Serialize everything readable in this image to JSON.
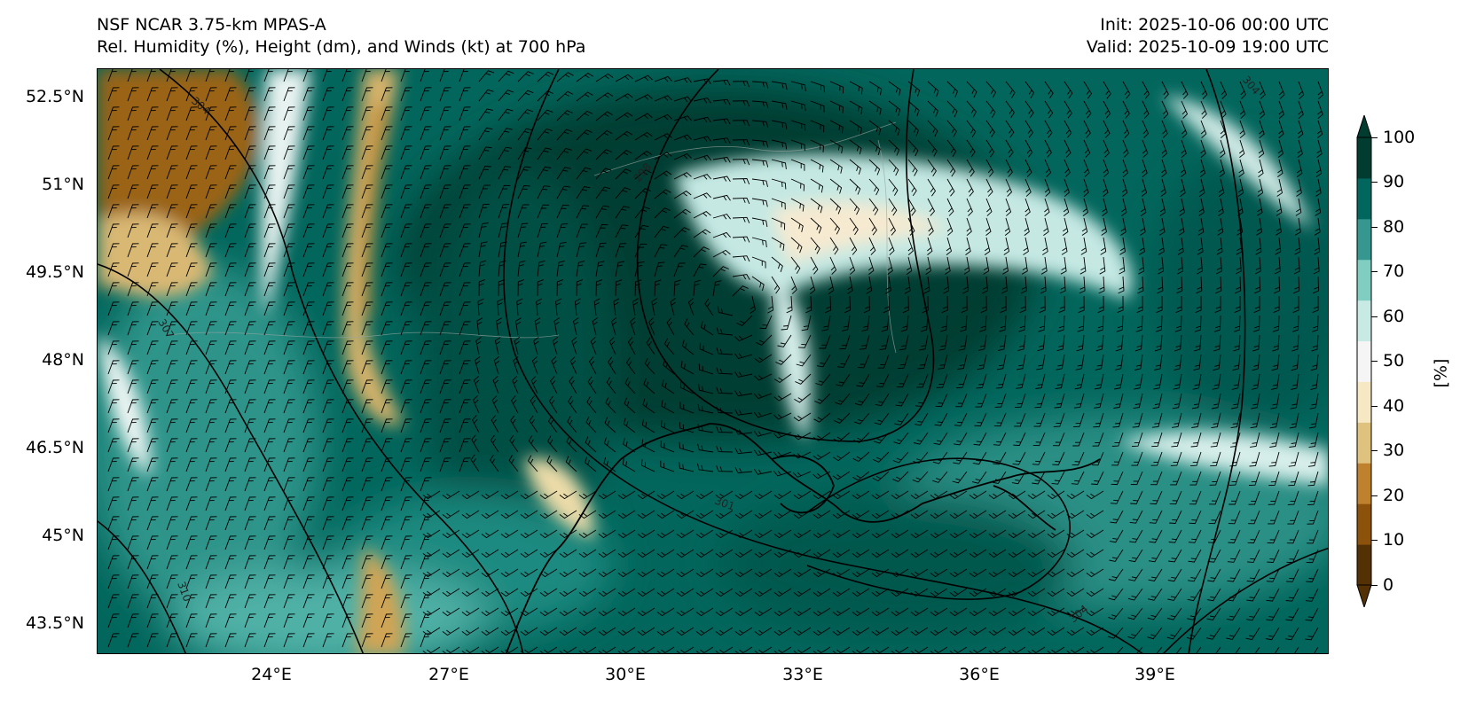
{
  "title": {
    "left_line1": "NSF NCAR 3.75-km MPAS-A",
    "left_line2": "Rel. Humidity (%), Height (dm), and Winds (kt) at 700 hPa",
    "right_line1": "Init: 2025-10-06 00:00 UTC",
    "right_line2": "Valid: 2025-10-09 19:00 UTC"
  },
  "map": {
    "lat_labels": [
      "52.5°N",
      "51°N",
      "49.5°N",
      "48°N",
      "46.5°N",
      "45°N",
      "43.5°N"
    ],
    "lon_labels": [
      "24°E",
      "27°E",
      "30°E",
      "33°E",
      "36°E",
      "39°E"
    ],
    "contour_labels": [
      "304",
      "307",
      "310",
      "298",
      "301",
      "304",
      "304"
    ]
  },
  "colorbar": {
    "unit": "[%]",
    "ticks": [
      "100",
      "90",
      "80",
      "70",
      "60",
      "50",
      "40",
      "30",
      "20",
      "10",
      "0"
    ],
    "colors": [
      "#543005",
      "#8c510a",
      "#bf812d",
      "#dfc27d",
      "#f6e8c3",
      "#f5f5f5",
      "#c7eae5",
      "#80cdc1",
      "#35978f",
      "#01665e",
      "#003c30"
    ]
  },
  "chart_data": {
    "type": "heatmap",
    "title": "Rel. Humidity (%), Height (dm), and Winds (kt) at 700 hPa",
    "xlim": [
      21,
      42
    ],
    "ylim": [
      43,
      53
    ],
    "colorbar_range": [
      0,
      100
    ],
    "contour_levels_dm": [
      298,
      301,
      304,
      307,
      310
    ]
  }
}
